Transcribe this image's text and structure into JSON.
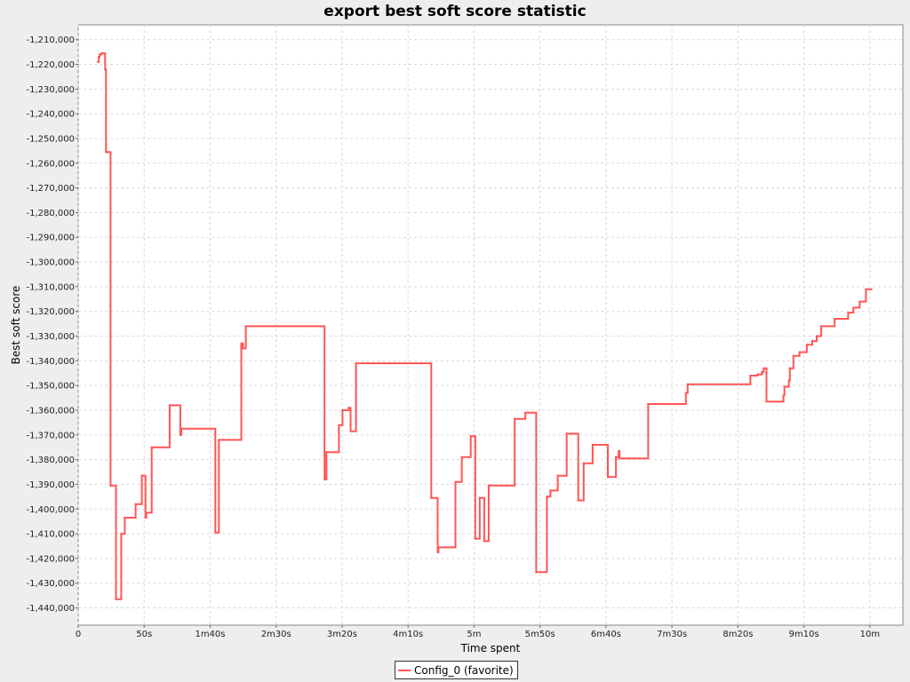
{
  "chart_data": {
    "type": "line",
    "title": "export best soft score statistic",
    "xlabel": "Time spent",
    "ylabel": "Best soft score",
    "xlim": [
      0,
      625
    ],
    "ylim": [
      -1447000,
      -1204000
    ],
    "x_ticks": [
      {
        "value": 0,
        "label": "0"
      },
      {
        "value": 50,
        "label": "50s"
      },
      {
        "value": 100,
        "label": "1m40s"
      },
      {
        "value": 150,
        "label": "2m30s"
      },
      {
        "value": 200,
        "label": "3m20s"
      },
      {
        "value": 250,
        "label": "4m10s"
      },
      {
        "value": 300,
        "label": "5m"
      },
      {
        "value": 350,
        "label": "5m50s"
      },
      {
        "value": 400,
        "label": "6m40s"
      },
      {
        "value": 450,
        "label": "7m30s"
      },
      {
        "value": 500,
        "label": "8m20s"
      },
      {
        "value": 550,
        "label": "9m10s"
      },
      {
        "value": 600,
        "label": "10m"
      }
    ],
    "y_ticks": [
      {
        "value": -1210000,
        "label": "-1,210,000"
      },
      {
        "value": -1220000,
        "label": "-1,220,000"
      },
      {
        "value": -1230000,
        "label": "-1,230,000"
      },
      {
        "value": -1240000,
        "label": "-1,240,000"
      },
      {
        "value": -1250000,
        "label": "-1,250,000"
      },
      {
        "value": -1260000,
        "label": "-1,260,000"
      },
      {
        "value": -1270000,
        "label": "-1,270,000"
      },
      {
        "value": -1280000,
        "label": "-1,280,000"
      },
      {
        "value": -1290000,
        "label": "-1,290,000"
      },
      {
        "value": -1300000,
        "label": "-1,300,000"
      },
      {
        "value": -1310000,
        "label": "-1,310,000"
      },
      {
        "value": -1320000,
        "label": "-1,320,000"
      },
      {
        "value": -1330000,
        "label": "-1,330,000"
      },
      {
        "value": -1340000,
        "label": "-1,340,000"
      },
      {
        "value": -1350000,
        "label": "-1,350,000"
      },
      {
        "value": -1360000,
        "label": "-1,360,000"
      },
      {
        "value": -1370000,
        "label": "-1,370,000"
      },
      {
        "value": -1380000,
        "label": "-1,380,000"
      },
      {
        "value": -1390000,
        "label": "-1,390,000"
      },
      {
        "value": -1400000,
        "label": "-1,400,000"
      },
      {
        "value": -1410000,
        "label": "-1,410,000"
      },
      {
        "value": -1420000,
        "label": "-1,420,000"
      },
      {
        "value": -1430000,
        "label": "-1,430,000"
      },
      {
        "value": -1440000,
        "label": "-1,440,000"
      }
    ],
    "grid": true,
    "legend_position": "bottom-center",
    "series": [
      {
        "name": "Config_0 (favorite)",
        "color": "#ff5555",
        "step": true,
        "points": [
          [
            14.9,
            -1219000
          ],
          [
            15.6,
            -1217000
          ],
          [
            16.3,
            -1216000
          ],
          [
            17.7,
            -1215500
          ],
          [
            20.4,
            -1222000
          ],
          [
            21.1,
            -1255500
          ],
          [
            24.5,
            -1390500
          ],
          [
            28.6,
            -1436500
          ],
          [
            32.6,
            -1410000
          ],
          [
            35.3,
            -1403500
          ],
          [
            43.5,
            -1398000
          ],
          [
            48.2,
            -1386500
          ],
          [
            51.0,
            -1403500
          ],
          [
            51.6,
            -1401500
          ],
          [
            55.7,
            -1375000
          ],
          [
            69.3,
            -1358000
          ],
          [
            77.4,
            -1370000
          ],
          [
            78.1,
            -1367500
          ],
          [
            103.9,
            -1409500
          ],
          [
            106.6,
            -1372000
          ],
          [
            123.6,
            -1333000
          ],
          [
            124.9,
            -1335000
          ],
          [
            127.0,
            -1326000
          ],
          [
            186.7,
            -1388000
          ],
          [
            188.1,
            -1377000
          ],
          [
            197.6,
            -1366000
          ],
          [
            200.3,
            -1360000
          ],
          [
            205.0,
            -1359000
          ],
          [
            206.4,
            -1368500
          ],
          [
            210.5,
            -1341000
          ],
          [
            267.6,
            -1395500
          ],
          [
            272.4,
            -1417500
          ],
          [
            273.0,
            -1415500
          ],
          [
            285.9,
            -1389000
          ],
          [
            290.7,
            -1379000
          ],
          [
            297.5,
            -1370500
          ],
          [
            300.9,
            -1412000
          ],
          [
            304.3,
            -1395500
          ],
          [
            307.7,
            -1413000
          ],
          [
            311.1,
            -1390500
          ],
          [
            330.8,
            -1363500
          ],
          [
            338.9,
            -1361000
          ],
          [
            347.1,
            -1425500
          ],
          [
            355.2,
            -1395000
          ],
          [
            357.9,
            -1392500
          ],
          [
            363.4,
            -1386500
          ],
          [
            370.2,
            -1369500
          ],
          [
            379.0,
            -1396500
          ],
          [
            383.1,
            -1381500
          ],
          [
            389.9,
            -1374000
          ],
          [
            401.4,
            -1387000
          ],
          [
            407.5,
            -1379000
          ],
          [
            409.6,
            -1376500
          ],
          [
            410.3,
            -1379500
          ],
          [
            432.0,
            -1357500
          ],
          [
            460.5,
            -1353000
          ],
          [
            461.9,
            -1349500
          ],
          [
            509.4,
            -1346000
          ],
          [
            514.8,
            -1345500
          ],
          [
            518.2,
            -1344500
          ],
          [
            519.5,
            -1343000
          ],
          [
            521.6,
            -1356500
          ],
          [
            534.5,
            -1354000
          ],
          [
            535.2,
            -1350500
          ],
          [
            538.6,
            -1348000
          ],
          [
            539.3,
            -1343000
          ],
          [
            542.0,
            -1338000
          ],
          [
            546.7,
            -1336500
          ],
          [
            552.2,
            -1333500
          ],
          [
            556.3,
            -1332000
          ],
          [
            559.7,
            -1330000
          ],
          [
            563.1,
            -1326000
          ],
          [
            573.3,
            -1323000
          ],
          [
            583.5,
            -1320500
          ],
          [
            587.5,
            -1318500
          ],
          [
            592.3,
            -1316000
          ],
          [
            597.0,
            -1311000
          ],
          [
            601.1,
            -1311000
          ]
        ]
      }
    ]
  }
}
